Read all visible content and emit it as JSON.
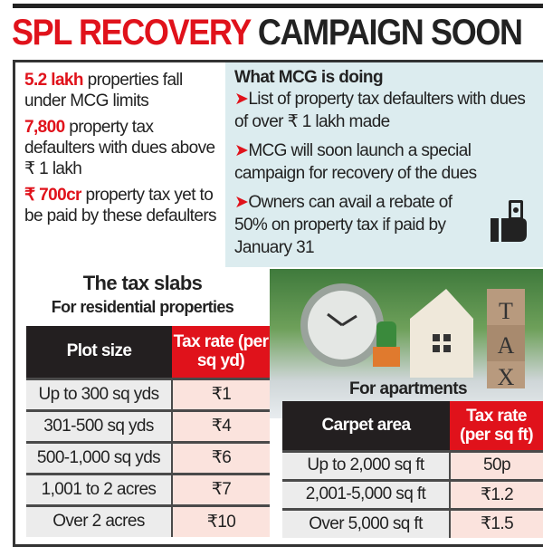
{
  "title": {
    "part1": "SPL RECOVERY",
    "part2": "CAMPAIGN SOON"
  },
  "stats": [
    {
      "highlight": "5.2 lakh",
      "text": " properties fall under MCG limits"
    },
    {
      "highlight": "7,800",
      "text": " property tax defaulters with dues above ₹ 1 lakh"
    },
    {
      "highlight": "₹ 700cr",
      "text": " property tax yet to be paid by these defaulters"
    }
  ],
  "actions": {
    "heading": "What MCG is doing",
    "bullet": "➤",
    "points": [
      "List of property tax defaulters with dues of over ₹ 1 lakh made",
      "MCG will soon launch a special campaign for recovery of the dues",
      "Owners can avail a rebate of 50% on property tax if paid by January 31"
    ],
    "icon": "hand-with-money-icon"
  },
  "slabs": {
    "heading": "The tax slabs",
    "residential": {
      "title": "For residential properties",
      "headers": [
        "Plot size",
        "Tax rate (per sq yd)"
      ],
      "rows": [
        [
          "Up to 300 sq yds",
          "₹1"
        ],
        [
          "301-500 sq yds",
          "₹4"
        ],
        [
          "500-1,000 sq yds",
          "₹6"
        ],
        [
          "1,001 to 2 acres",
          "₹7"
        ],
        [
          "Over 2 acres",
          "₹10"
        ]
      ]
    },
    "apartments": {
      "title": "For apartments",
      "headers": [
        "Carpet area",
        "Tax rate (per sq ft)"
      ],
      "rows": [
        [
          "Up to 2,000 sq ft",
          "50p"
        ],
        [
          "2,001-5,000 sq ft",
          "₹1.2"
        ],
        [
          "Over 5,000 sq ft",
          "₹1.5"
        ]
      ]
    }
  },
  "photo": {
    "block_letters": [
      "T",
      "A",
      "X"
    ]
  },
  "colors": {
    "accent": "#e0121b",
    "header_dark": "#231f20",
    "panel_blue": "#dcecef",
    "rate_cell": "#fbe3dd"
  }
}
